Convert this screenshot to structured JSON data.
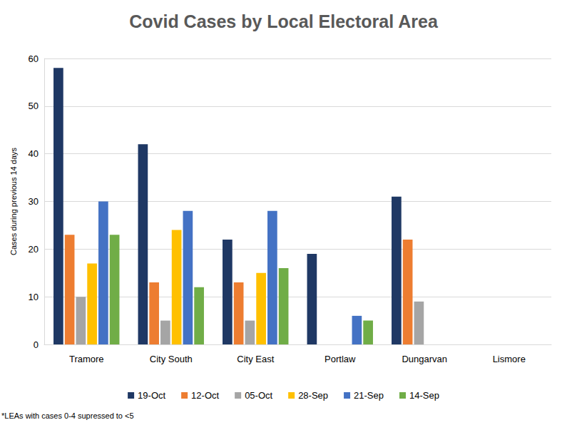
{
  "chart_data": {
    "type": "bar",
    "title": "Covid Cases by Local Electoral Area",
    "y_label": "Cases during previous 14 days",
    "annotations": [
      "*LEAs with cases 0-4 supressed to <5"
    ],
    "categories": [
      "Tramore",
      "City South",
      "City East",
      "Portlaw",
      "Dungarvan",
      "Lismore"
    ],
    "series": [
      {
        "name": "19-Oct",
        "color": "#1f3864",
        "values": [
          58,
          42,
          22,
          19,
          31,
          0
        ]
      },
      {
        "name": "12-Oct",
        "color": "#ed7d31",
        "values": [
          23,
          13,
          13,
          0,
          22,
          0
        ]
      },
      {
        "name": "05-Oct",
        "color": "#a5a5a5",
        "values": [
          10,
          5,
          5,
          0,
          9,
          0
        ]
      },
      {
        "name": "28-Sep",
        "color": "#ffc000",
        "values": [
          17,
          24,
          15,
          0,
          0,
          0
        ]
      },
      {
        "name": "21-Sep",
        "color": "#4472c4",
        "values": [
          30,
          28,
          28,
          6,
          0,
          0
        ]
      },
      {
        "name": "14-Sep",
        "color": "#70ad47",
        "values": [
          23,
          12,
          16,
          5,
          0,
          0
        ]
      }
    ],
    "ylim": [
      0,
      60
    ],
    "yticks": [
      0,
      10,
      20,
      30,
      40,
      50,
      60
    ],
    "grid": true,
    "legend": "bottom"
  }
}
